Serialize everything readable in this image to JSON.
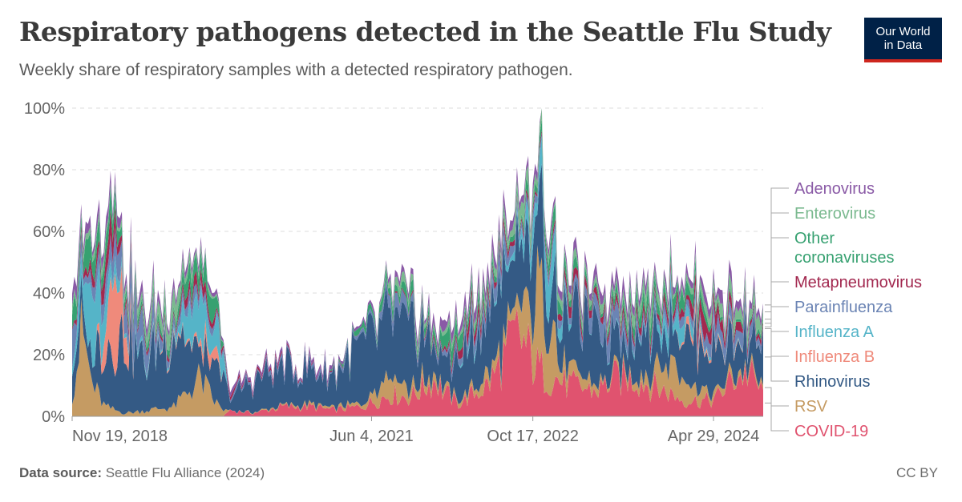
{
  "header": {
    "title": "Respiratory pathogens detected in the Seattle Flu Study",
    "subtitle": "Weekly share of respiratory samples with a detected respiratory pathogen.",
    "logo_line1": "Our World",
    "logo_line2": "in Data"
  },
  "footer": {
    "source_label": "Data source:",
    "source_text": "Seattle Flu Alliance (2024)",
    "license": "CC BY"
  },
  "chart_data": {
    "type": "area",
    "stacked": true,
    "x_start": "2018-11-19",
    "x_end": "2024-09-30",
    "ylim": [
      0,
      100
    ],
    "y_ticks": [
      "0%",
      "20%",
      "40%",
      "60%",
      "80%",
      "100%"
    ],
    "x_ticks": [
      {
        "date": "2018-11-19",
        "label": "Nov 19, 2018"
      },
      {
        "date": "2021-06-04",
        "label": "Jun 4, 2021"
      },
      {
        "date": "2022-10-17",
        "label": "Oct 17, 2022"
      },
      {
        "date": "2024-04-29",
        "label": "Apr 29, 2024"
      }
    ],
    "grid": "horizontal dashed",
    "legend_position": "right",
    "series": [
      {
        "name": "COVID-19",
        "color": "#e0536f",
        "anchors": [
          [
            "2018-11-19",
            0
          ],
          [
            "2020-03-01",
            0
          ],
          [
            "2020-03-20",
            2
          ],
          [
            "2020-06-01",
            1
          ],
          [
            "2020-09-01",
            3
          ],
          [
            "2020-12-01",
            3
          ],
          [
            "2021-02-01",
            2
          ],
          [
            "2021-05-01",
            3
          ],
          [
            "2021-08-01",
            7
          ],
          [
            "2021-10-01",
            6
          ],
          [
            "2021-12-20",
            12
          ],
          [
            "2022-01-10",
            8
          ],
          [
            "2022-03-01",
            4
          ],
          [
            "2022-06-01",
            10
          ],
          [
            "2022-09-01",
            26
          ],
          [
            "2022-11-01",
            15
          ],
          [
            "2023-02-01",
            10
          ],
          [
            "2023-05-01",
            8
          ],
          [
            "2023-07-01",
            12
          ],
          [
            "2023-09-01",
            12
          ],
          [
            "2023-12-01",
            8
          ],
          [
            "2024-02-01",
            5
          ],
          [
            "2024-05-01",
            5
          ],
          [
            "2024-07-01",
            12
          ],
          [
            "2024-08-15",
            14
          ],
          [
            "2024-09-30",
            7
          ]
        ]
      },
      {
        "name": "RSV",
        "color": "#c59b63",
        "anchors": [
          [
            "2018-11-19",
            8
          ],
          [
            "2018-12-20",
            27
          ],
          [
            "2019-01-20",
            10
          ],
          [
            "2019-03-01",
            3
          ],
          [
            "2019-05-01",
            1
          ],
          [
            "2019-10-01",
            3
          ],
          [
            "2019-12-20",
            12
          ],
          [
            "2020-02-01",
            5
          ],
          [
            "2020-03-20",
            0
          ],
          [
            "2021-05-01",
            1
          ],
          [
            "2021-08-01",
            8
          ],
          [
            "2021-10-01",
            3
          ],
          [
            "2022-03-01",
            1
          ],
          [
            "2022-09-01",
            5
          ],
          [
            "2022-11-15",
            28
          ],
          [
            "2023-01-10",
            5
          ],
          [
            "2023-06-01",
            1
          ],
          [
            "2023-10-01",
            3
          ],
          [
            "2023-12-15",
            12
          ],
          [
            "2024-02-01",
            5
          ],
          [
            "2024-05-01",
            2
          ],
          [
            "2024-09-30",
            1
          ]
        ]
      },
      {
        "name": "Rhinovirus",
        "color": "#345a85",
        "anchors": [
          [
            "2018-11-19",
            12
          ],
          [
            "2019-01-01",
            4
          ],
          [
            "2019-03-01",
            20
          ],
          [
            "2019-05-01",
            25
          ],
          [
            "2019-07-01",
            15
          ],
          [
            "2019-10-01",
            25
          ],
          [
            "2019-12-20",
            8
          ],
          [
            "2020-03-01",
            10
          ],
          [
            "2020-03-20",
            4
          ],
          [
            "2020-06-01",
            10
          ],
          [
            "2020-09-01",
            12
          ],
          [
            "2021-02-01",
            10
          ],
          [
            "2021-05-01",
            18
          ],
          [
            "2021-08-01",
            18
          ],
          [
            "2021-10-15",
            18
          ],
          [
            "2022-01-10",
            8
          ],
          [
            "2022-03-01",
            12
          ],
          [
            "2022-06-01",
            20
          ],
          [
            "2022-09-01",
            18
          ],
          [
            "2022-10-20",
            22
          ],
          [
            "2023-01-10",
            15
          ],
          [
            "2023-04-01",
            18
          ],
          [
            "2023-07-01",
            12
          ],
          [
            "2023-09-15",
            15
          ],
          [
            "2023-12-01",
            12
          ],
          [
            "2024-02-01",
            15
          ],
          [
            "2024-05-01",
            15
          ],
          [
            "2024-07-01",
            10
          ],
          [
            "2024-09-30",
            12
          ]
        ]
      },
      {
        "name": "Influenza B",
        "color": "#ef8a7b",
        "anchors": [
          [
            "2018-11-19",
            0
          ],
          [
            "2019-02-01",
            0
          ],
          [
            "2019-03-01",
            10
          ],
          [
            "2019-03-25",
            28
          ],
          [
            "2019-04-15",
            12
          ],
          [
            "2019-06-01",
            0
          ],
          [
            "2019-12-01",
            1
          ],
          [
            "2020-02-01",
            4
          ],
          [
            "2020-03-01",
            0
          ],
          [
            "2024-01-01",
            0
          ],
          [
            "2024-03-01",
            3
          ],
          [
            "2024-04-01",
            1
          ],
          [
            "2024-09-30",
            0
          ]
        ]
      },
      {
        "name": "Influenza A",
        "color": "#55b4c8",
        "anchors": [
          [
            "2018-11-19",
            5
          ],
          [
            "2019-01-15",
            15
          ],
          [
            "2019-02-20",
            12
          ],
          [
            "2019-03-20",
            5
          ],
          [
            "2019-05-01",
            1
          ],
          [
            "2019-10-01",
            1
          ],
          [
            "2019-12-20",
            15
          ],
          [
            "2020-02-15",
            8
          ],
          [
            "2020-03-15",
            0
          ],
          [
            "2022-03-01",
            0
          ],
          [
            "2022-04-01",
            2
          ],
          [
            "2022-06-01",
            0
          ],
          [
            "2022-11-01",
            6
          ],
          [
            "2022-12-01",
            10
          ],
          [
            "2023-01-15",
            3
          ],
          [
            "2023-03-01",
            0
          ],
          [
            "2023-11-01",
            1
          ],
          [
            "2023-12-20",
            6
          ],
          [
            "2024-02-01",
            4
          ],
          [
            "2024-04-01",
            1
          ],
          [
            "2024-09-30",
            0
          ]
        ]
      },
      {
        "name": "Parainfluenza",
        "color": "#6b84b4",
        "anchors": [
          [
            "2018-11-19",
            8
          ],
          [
            "2019-01-01",
            3
          ],
          [
            "2019-04-01",
            6
          ],
          [
            "2019-06-01",
            10
          ],
          [
            "2019-09-01",
            2
          ],
          [
            "2019-12-01",
            3
          ],
          [
            "2020-03-01",
            1
          ],
          [
            "2021-06-01",
            1
          ],
          [
            "2021-08-01",
            4
          ],
          [
            "2021-12-01",
            1
          ],
          [
            "2022-05-01",
            3
          ],
          [
            "2022-07-01",
            5
          ],
          [
            "2022-10-01",
            2
          ],
          [
            "2023-04-01",
            3
          ],
          [
            "2023-06-01",
            6
          ],
          [
            "2023-09-01",
            2
          ],
          [
            "2024-04-01",
            3
          ],
          [
            "2024-06-01",
            5
          ],
          [
            "2024-09-30",
            2
          ]
        ]
      },
      {
        "name": "Metapneumovirus",
        "color": "#a2284f",
        "anchors": [
          [
            "2018-11-19",
            1
          ],
          [
            "2019-02-01",
            3
          ],
          [
            "2019-03-15",
            6
          ],
          [
            "2019-05-01",
            2
          ],
          [
            "2019-08-01",
            1
          ],
          [
            "2020-01-01",
            3
          ],
          [
            "2020-03-01",
            1
          ],
          [
            "2021-06-01",
            0
          ],
          [
            "2022-02-01",
            1
          ],
          [
            "2022-04-01",
            3
          ],
          [
            "2022-06-01",
            2
          ],
          [
            "2022-12-01",
            1
          ],
          [
            "2023-03-01",
            3
          ],
          [
            "2023-05-01",
            2
          ],
          [
            "2024-02-01",
            2
          ],
          [
            "2024-04-01",
            6
          ],
          [
            "2024-06-01",
            3
          ],
          [
            "2024-09-30",
            1
          ]
        ]
      },
      {
        "name": "Other coronaviruses",
        "color": "#37a171",
        "anchors": [
          [
            "2018-11-19",
            5
          ],
          [
            "2019-01-01",
            8
          ],
          [
            "2019-03-01",
            6
          ],
          [
            "2019-05-01",
            2
          ],
          [
            "2019-10-01",
            2
          ],
          [
            "2020-01-15",
            7
          ],
          [
            "2020-03-15",
            0
          ],
          [
            "2021-01-01",
            0
          ],
          [
            "2021-09-01",
            3
          ],
          [
            "2021-12-01",
            2
          ],
          [
            "2022-02-01",
            4
          ],
          [
            "2022-04-01",
            3
          ],
          [
            "2022-08-01",
            1
          ],
          [
            "2022-12-01",
            4
          ],
          [
            "2023-02-01",
            3
          ],
          [
            "2023-05-01",
            1
          ],
          [
            "2023-12-01",
            5
          ],
          [
            "2024-02-01",
            4
          ],
          [
            "2024-05-01",
            1
          ],
          [
            "2024-09-30",
            1
          ]
        ]
      },
      {
        "name": "Enterovirus",
        "color": "#7ab98f",
        "anchors": [
          [
            "2018-11-19",
            2
          ],
          [
            "2019-06-01",
            2
          ],
          [
            "2019-09-15",
            5
          ],
          [
            "2019-12-01",
            2
          ],
          [
            "2020-03-15",
            0
          ],
          [
            "2021-06-01",
            0
          ],
          [
            "2021-09-01",
            3
          ],
          [
            "2021-12-01",
            1
          ],
          [
            "2022-08-01",
            3
          ],
          [
            "2022-09-15",
            5
          ],
          [
            "2022-12-01",
            2
          ],
          [
            "2023-08-01",
            2
          ],
          [
            "2023-09-15",
            4
          ],
          [
            "2024-01-01",
            1
          ],
          [
            "2024-08-01",
            4
          ],
          [
            "2024-09-30",
            3
          ]
        ]
      },
      {
        "name": "Adenovirus",
        "color": "#8a5aa6",
        "anchors": [
          [
            "2018-11-19",
            3
          ],
          [
            "2019-03-01",
            3
          ],
          [
            "2019-09-01",
            2
          ],
          [
            "2020-03-15",
            1
          ],
          [
            "2021-06-01",
            1
          ],
          [
            "2021-10-01",
            2
          ],
          [
            "2022-06-01",
            3
          ],
          [
            "2023-01-01",
            2
          ],
          [
            "2023-06-01",
            3
          ],
          [
            "2024-01-01",
            2
          ],
          [
            "2024-06-01",
            3
          ],
          [
            "2024-09-30",
            2
          ]
        ]
      }
    ]
  }
}
